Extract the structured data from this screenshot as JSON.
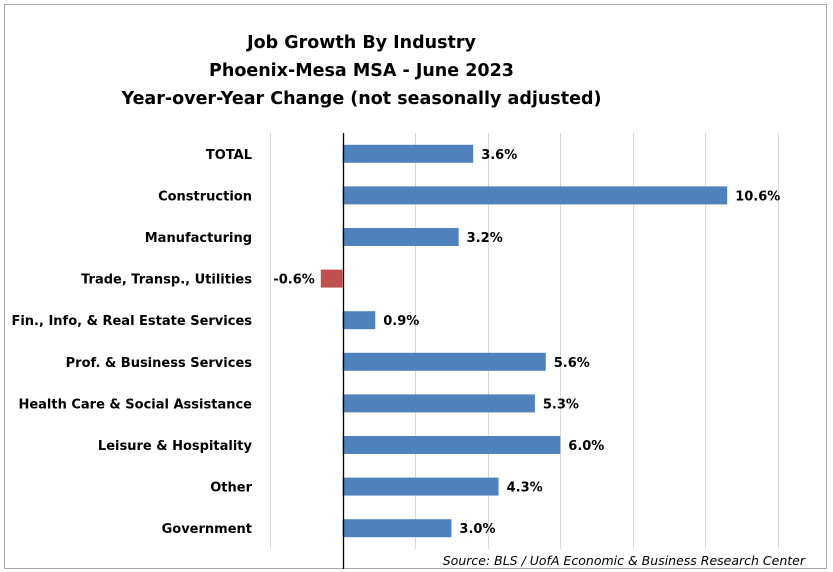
{
  "chart_data": {
    "type": "bar",
    "orientation": "horizontal",
    "title": [
      "Job Growth By Industry",
      "Phoenix-Mesa MSA - June 2023",
      "Year-over-Year Change (not seasonally adjusted)"
    ],
    "categories": [
      "TOTAL",
      "Construction",
      "Manufacturing",
      "Trade, Transp., Utilities",
      "Fin., Info, & Real Estate Services",
      "Prof. & Business Services",
      "Health Care & Social Assistance",
      "Leisure & Hospitality",
      "Other",
      "Government"
    ],
    "values": [
      3.6,
      10.6,
      3.2,
      -0.6,
      0.9,
      5.6,
      5.3,
      6.0,
      4.3,
      3.0
    ],
    "value_labels": [
      "3.6%",
      "10.6%",
      "3.2%",
      "-0.6%",
      "0.9%",
      "5.6%",
      "5.3%",
      "6.0%",
      "4.3%",
      "3.0%"
    ],
    "xlim": [
      -2,
      12
    ],
    "grid": true,
    "colors": {
      "positive": "#4f81bd",
      "negative": "#c0504d",
      "grid": "#d9d9d9",
      "axis": "#000000"
    },
    "source": "Source: BLS / UofA Economic & Business Research Center"
  }
}
